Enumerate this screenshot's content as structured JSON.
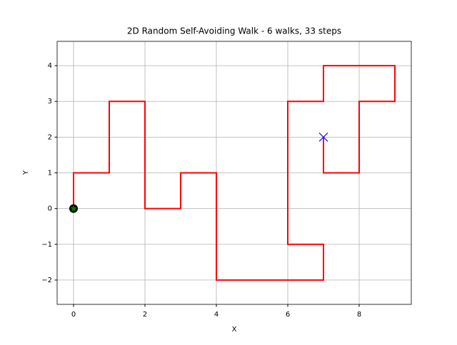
{
  "chart_data": {
    "type": "line",
    "title": "2D Random Self-Avoiding Walk - 6 walks, 33 steps",
    "x_label": "X",
    "y_label": "Y",
    "series": [
      {
        "color": "#ff0000",
        "x": [
          0,
          0,
          1,
          1,
          1,
          2,
          2,
          2,
          2,
          3,
          3,
          4,
          4,
          4,
          4,
          5,
          6,
          7,
          7,
          6,
          6,
          6,
          6,
          6,
          7,
          7,
          8,
          9,
          9,
          8,
          8,
          8,
          7,
          7
        ],
        "values": [
          0,
          1,
          1,
          2,
          3,
          3,
          2,
          1,
          0,
          0,
          1,
          1,
          0,
          -1,
          -2,
          -2,
          -2,
          -2,
          -1,
          -1,
          0,
          1,
          2,
          3,
          3,
          4,
          4,
          4,
          3,
          3,
          2,
          1,
          1,
          2
        ]
      }
    ],
    "start_color": "#008000",
    "end_color": "#0000ff",
    "xlim": [
      -0.46,
      9.46
    ],
    "ylim": [
      -2.68,
      4.68
    ],
    "xticks": [
      0,
      2,
      4,
      6,
      8
    ],
    "yticks": [
      {
        "value": -2,
        "label": "−2"
      },
      {
        "value": -1,
        "label": "−1"
      },
      0,
      1,
      2,
      3,
      4
    ],
    "grid": true
  }
}
